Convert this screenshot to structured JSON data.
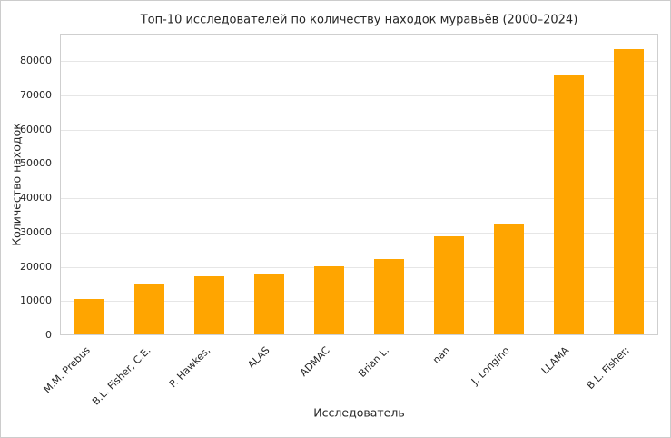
{
  "chart_data": {
    "type": "bar",
    "title": "Топ-10 исследователей по количеству находок муравьёв (2000–2024)",
    "xlabel": "Исследователь",
    "ylabel": "Количество находок",
    "categories": [
      "M.M. Prebus",
      "B.L. Fisher, C.E.",
      "P. Hawkes,",
      "ALAS",
      "ADMAC",
      "Brian L.",
      "nan",
      "J. Longino",
      "LLAMA",
      "B.L. Fisher;"
    ],
    "values": [
      10500,
      15000,
      17300,
      18000,
      20200,
      22300,
      29000,
      32500,
      75700,
      83500
    ],
    "yticks": [
      0,
      10000,
      20000,
      30000,
      40000,
      50000,
      60000,
      70000,
      80000
    ],
    "ylim": [
      0,
      88000
    ],
    "bar_color": "#FFA500",
    "grid": true,
    "legend": false,
    "bar_width_fraction": 0.5
  }
}
